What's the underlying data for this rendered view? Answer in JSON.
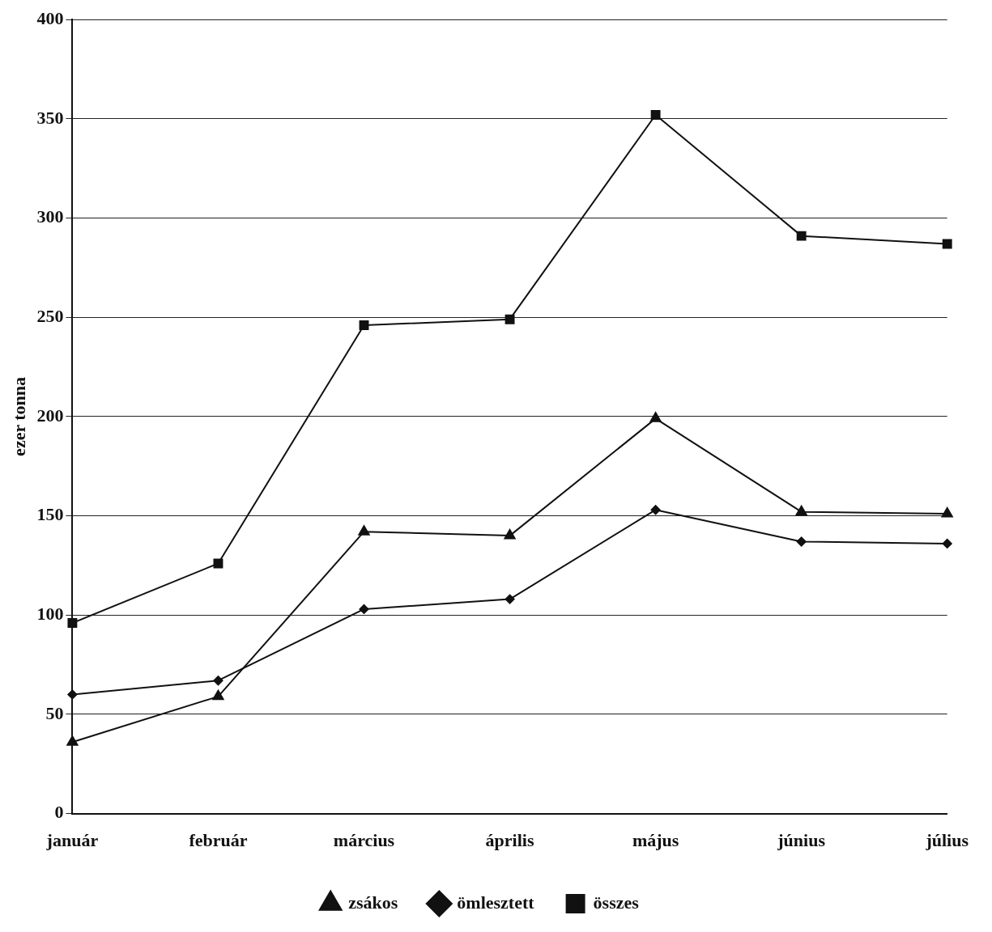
{
  "chart_data": {
    "type": "line",
    "ylabel": "ezer tonna",
    "categories": [
      "január",
      "február",
      "március",
      "április",
      "május",
      "június",
      "július"
    ],
    "series": [
      {
        "name": "zsákos",
        "color": "#111111",
        "marker": "triangle",
        "values": [
          36,
          59,
          142,
          140,
          199,
          152,
          151
        ]
      },
      {
        "name": "ömlesztett",
        "color": "#111111",
        "marker": "diamond",
        "values": [
          60,
          67,
          103,
          108,
          153,
          137,
          136
        ]
      },
      {
        "name": "összes",
        "color": "#111111",
        "marker": "square",
        "values": [
          96,
          126,
          246,
          249,
          352,
          291,
          287
        ]
      }
    ],
    "ylim": [
      0,
      400
    ],
    "yticks": [
      0,
      50,
      100,
      150,
      200,
      250,
      300,
      350,
      400
    ],
    "grid": "y",
    "legend": "bottom",
    "line_style": "solid"
  }
}
